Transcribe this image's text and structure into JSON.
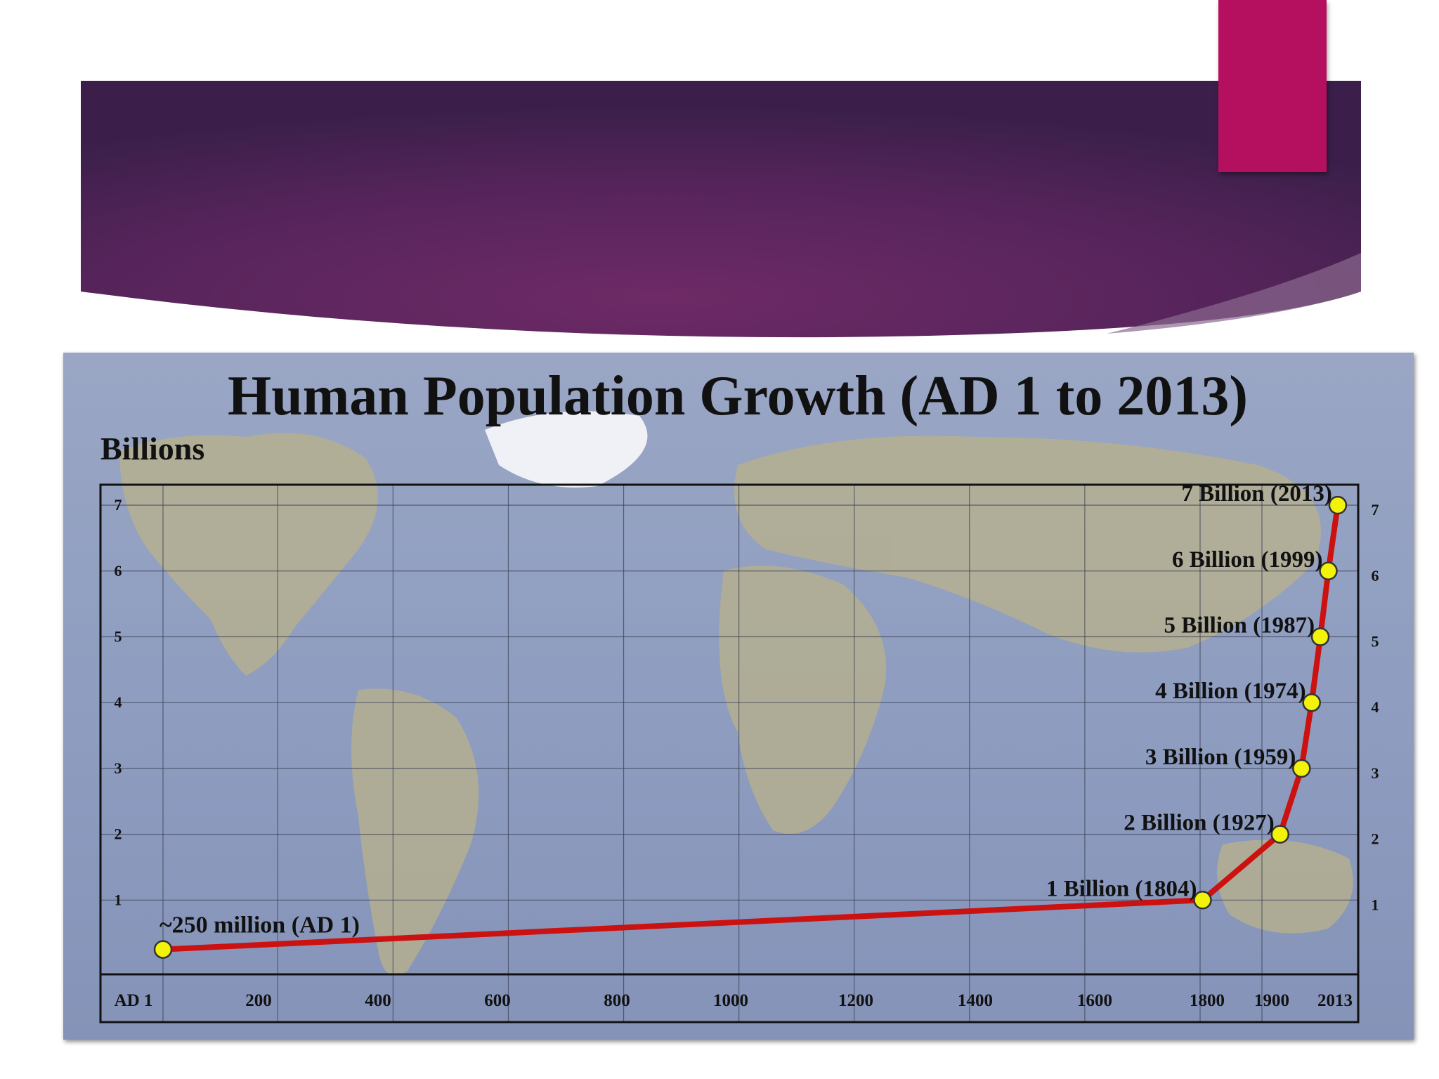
{
  "slide": {
    "banner_color": "#5a2558",
    "accent_color": "#b5105f"
  },
  "chart_data": {
    "type": "line",
    "title": "Human Population Growth (AD 1 to 2013)",
    "ylabel": "Billions",
    "xlabel": "",
    "ylim": [
      0,
      7.45
    ],
    "y_ticks": [
      1,
      2,
      3,
      4,
      5,
      6,
      7
    ],
    "x_tick_labels": [
      "AD 1",
      "200",
      "400",
      "600",
      "800",
      "1000",
      "1200",
      "1400",
      "1600",
      "1800",
      "1900",
      "2013"
    ],
    "grid": true,
    "background": "world map",
    "line_color": "#cc1111",
    "marker_color": "#f2f20a",
    "series": [
      {
        "points": [
          {
            "x": 1,
            "y": 0.25,
            "label": "~250 million (AD 1)"
          },
          {
            "x": 1804,
            "y": 1,
            "label": "1 Billion (1804)"
          },
          {
            "x": 1927,
            "y": 2,
            "label": "2 Billion (1927)"
          },
          {
            "x": 1959,
            "y": 3,
            "label": "3 Billion (1959)"
          },
          {
            "x": 1974,
            "y": 4,
            "label": "4 Billion (1974)"
          },
          {
            "x": 1987,
            "y": 5,
            "label": "5 Billion (1987)"
          },
          {
            "x": 1999,
            "y": 6,
            "label": "6 Billion (1999)"
          },
          {
            "x": 2013,
            "y": 7,
            "label": "7 Billion (2013)"
          }
        ]
      }
    ]
  }
}
